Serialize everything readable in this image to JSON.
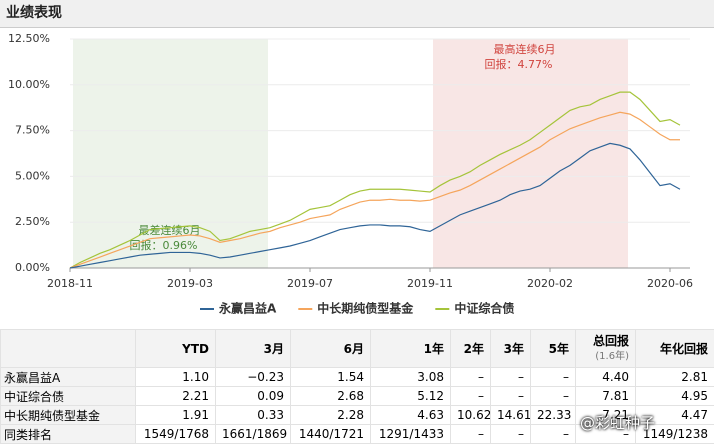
{
  "header": {
    "title": "业绩表现"
  },
  "chart_data": {
    "type": "line",
    "categories": [
      "2018-11",
      null,
      null,
      null,
      null,
      null,
      null,
      null,
      null,
      null,
      null,
      null,
      "2019-03",
      null,
      null,
      null,
      null,
      null,
      null,
      null,
      null,
      null,
      null,
      null,
      "2019-07",
      null,
      null,
      null,
      null,
      null,
      null,
      null,
      null,
      null,
      null,
      null,
      "2019-11",
      null,
      null,
      null,
      null,
      null,
      null,
      null,
      null,
      null,
      null,
      null,
      "2020-02",
      null,
      null,
      null,
      null,
      null,
      null,
      null,
      null,
      null,
      null,
      null,
      "2020-06",
      null
    ],
    "ylim": [
      0,
      12.5
    ],
    "yticks": [
      {
        "value": 0,
        "label": "0.00%"
      },
      {
        "value": 2.5,
        "label": "2.50%"
      },
      {
        "value": 5,
        "label": "5.00%"
      },
      {
        "value": 7.5,
        "label": "7.50%"
      },
      {
        "value": 10,
        "label": "10.00%"
      },
      {
        "value": 12.5,
        "label": "12.50%"
      }
    ],
    "grid": true,
    "series": [
      {
        "name": "永赢昌益A",
        "color": "#2f6497",
        "values": [
          0,
          0.1,
          0.2,
          0.3,
          0.4,
          0.5,
          0.6,
          0.7,
          0.75,
          0.8,
          0.85,
          0.85,
          0.85,
          0.8,
          0.7,
          0.55,
          0.6,
          0.7,
          0.8,
          0.9,
          1.0,
          1.1,
          1.2,
          1.35,
          1.5,
          1.7,
          1.9,
          2.1,
          2.2,
          2.3,
          2.35,
          2.35,
          2.3,
          2.3,
          2.25,
          2.1,
          2.0,
          2.3,
          2.6,
          2.9,
          3.1,
          3.3,
          3.5,
          3.7,
          4.0,
          4.2,
          4.3,
          4.5,
          4.9,
          5.3,
          5.6,
          6.0,
          6.4,
          6.6,
          6.8,
          6.7,
          6.5,
          5.9,
          5.2,
          4.5,
          4.6,
          4.3
        ]
      },
      {
        "name": "中长期纯债型基金",
        "color": "#f5a55c",
        "values": [
          0,
          0.2,
          0.4,
          0.6,
          0.8,
          1.0,
          1.2,
          1.4,
          1.6,
          1.65,
          1.7,
          1.75,
          1.8,
          1.75,
          1.6,
          1.4,
          1.5,
          1.6,
          1.75,
          1.9,
          2.0,
          2.2,
          2.35,
          2.5,
          2.7,
          2.8,
          2.9,
          3.2,
          3.4,
          3.6,
          3.7,
          3.7,
          3.75,
          3.7,
          3.7,
          3.65,
          3.7,
          3.9,
          4.1,
          4.25,
          4.5,
          4.8,
          5.1,
          5.4,
          5.7,
          6.0,
          6.3,
          6.6,
          7.0,
          7.3,
          7.6,
          7.8,
          8.0,
          8.2,
          8.35,
          8.5,
          8.4,
          8.1,
          7.7,
          7.3,
          7.0,
          7.0
        ]
      },
      {
        "name": "中证综合债",
        "color": "#a5c43a",
        "values": [
          0,
          0.3,
          0.55,
          0.8,
          1.0,
          1.25,
          1.5,
          1.8,
          2.1,
          2.15,
          2.2,
          2.25,
          2.3,
          2.2,
          2.0,
          1.5,
          1.6,
          1.8,
          2.0,
          2.1,
          2.2,
          2.4,
          2.6,
          2.9,
          3.2,
          3.3,
          3.4,
          3.7,
          4.0,
          4.2,
          4.3,
          4.3,
          4.3,
          4.3,
          4.25,
          4.2,
          4.15,
          4.5,
          4.8,
          5.0,
          5.25,
          5.6,
          5.9,
          6.2,
          6.45,
          6.7,
          7.0,
          7.4,
          7.8,
          8.2,
          8.6,
          8.8,
          8.9,
          9.2,
          9.4,
          9.6,
          9.6,
          9.2,
          8.6,
          8.0,
          8.1,
          7.8
        ]
      }
    ],
    "regions": [
      {
        "start": 0,
        "end": 19.5,
        "color": "#edf3ea",
        "text_color": "#4a8a3a",
        "label": [
          "最差连续6月",
          "回报：0.96%"
        ]
      },
      {
        "start": 36,
        "end": 55.5,
        "color": "#f8e6e5",
        "text_color": "#d0433d",
        "label": [
          "最高连续6月",
          "回报：4.77%"
        ]
      }
    ]
  },
  "table": {
    "columns": [
      "",
      "YTD",
      "3月",
      "6月",
      "1年",
      "2年",
      "3年",
      "5年",
      "总回报",
      "年化回报"
    ],
    "note": "(1.6年)",
    "rows": [
      [
        "永赢昌益A",
        "1.10",
        "−0.23",
        "1.54",
        "3.08",
        "–",
        "–",
        "–",
        "4.40",
        "2.81"
      ],
      [
        "中证综合债",
        "2.21",
        "0.09",
        "2.68",
        "5.12",
        "–",
        "–",
        "–",
        "7.81",
        "4.95"
      ],
      [
        "中长期纯债型基金",
        "1.91",
        "0.33",
        "2.28",
        "4.63",
        "10.62",
        "14.61",
        "22.33",
        "7.21",
        "4.47"
      ],
      [
        "同类排名",
        "1549/1768",
        "1661/1869",
        "1440/1721",
        "1291/1433",
        "–",
        "–",
        "–",
        "–",
        "1149/1238"
      ]
    ]
  },
  "watermark": "@彩虹种子"
}
